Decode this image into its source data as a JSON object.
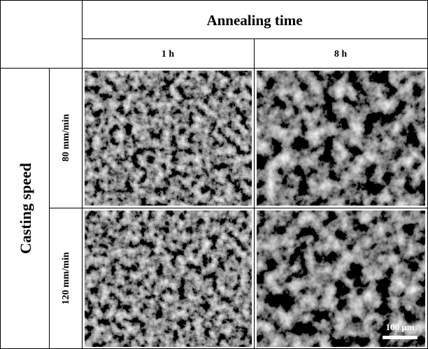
{
  "table": {
    "column_header": {
      "title": "Annealing time",
      "columns": [
        "1 h",
        "8 h"
      ]
    },
    "row_header": {
      "title": "Casting speed",
      "rows": [
        "80 mm/min",
        "120 mm/min"
      ]
    }
  },
  "scale_bar": {
    "label": "100 μm"
  }
}
